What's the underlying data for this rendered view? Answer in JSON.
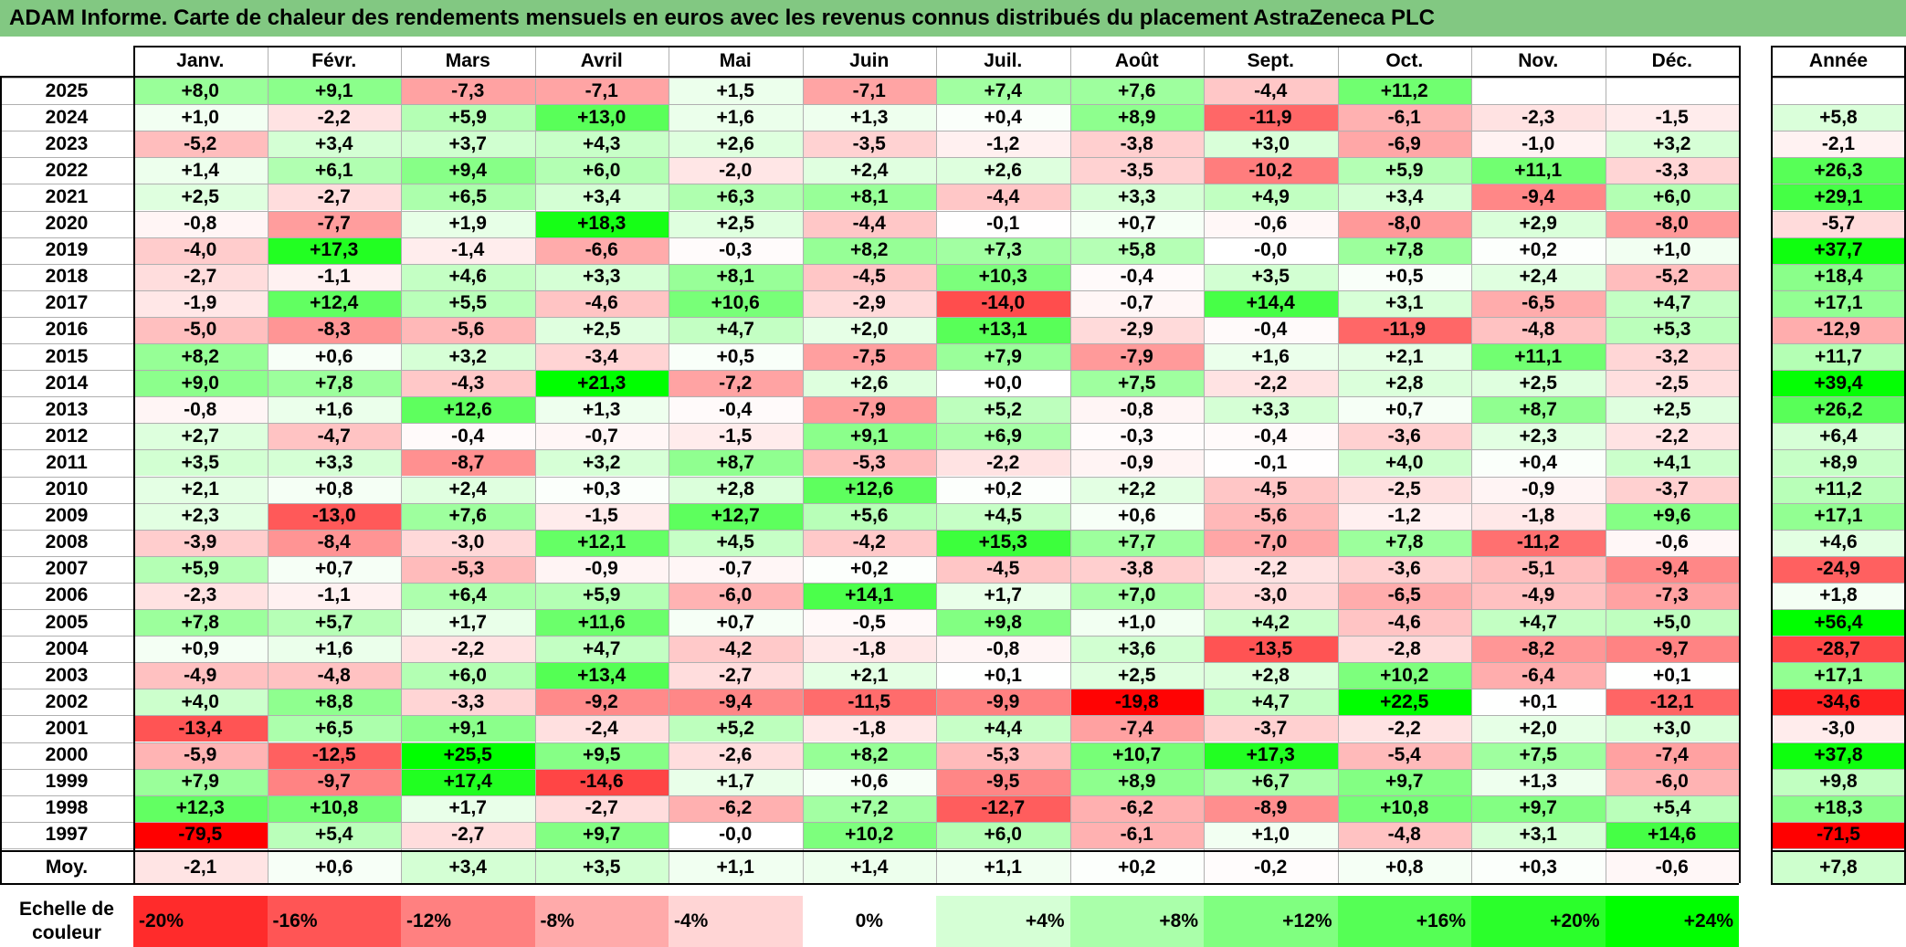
{
  "title": "ADAM Informe. Carte de chaleur des rendements mensuels en euros avec les revenus connus distribués du placement AstraZeneca PLC",
  "chart_data": {
    "type": "heatmap",
    "months": [
      "Janv.",
      "Févr.",
      "Mars",
      "Avril",
      "Mai",
      "Juin",
      "Juil.",
      "Août",
      "Sept.",
      "Oct.",
      "Nov.",
      "Déc."
    ],
    "year_header": "Année",
    "rows": [
      {
        "year": "2025",
        "values": [
          "+8,0",
          "+9,1",
          "-7,3",
          "-7,1",
          "+1,5",
          "-7,1",
          "+7,4",
          "+7,6",
          "-4,4",
          "+11,2",
          "",
          ""
        ],
        "annual": ""
      },
      {
        "year": "2024",
        "values": [
          "+1,0",
          "-2,2",
          "+5,9",
          "+13,0",
          "+1,6",
          "+1,3",
          "+0,4",
          "+8,9",
          "-11,9",
          "-6,1",
          "-2,3",
          "-1,5"
        ],
        "annual": "+5,8"
      },
      {
        "year": "2023",
        "values": [
          "-5,2",
          "+3,4",
          "+3,7",
          "+4,3",
          "+2,6",
          "-3,5",
          "-1,2",
          "-3,8",
          "+3,0",
          "-6,9",
          "-1,0",
          "+3,2"
        ],
        "annual": "-2,1"
      },
      {
        "year": "2022",
        "values": [
          "+1,4",
          "+6,1",
          "+9,4",
          "+6,0",
          "-2,0",
          "+2,4",
          "+2,6",
          "-3,5",
          "-10,2",
          "+5,9",
          "+11,1",
          "-3,3"
        ],
        "annual": "+26,3"
      },
      {
        "year": "2021",
        "values": [
          "+2,5",
          "-2,7",
          "+6,5",
          "+3,4",
          "+6,3",
          "+8,1",
          "-4,4",
          "+3,3",
          "+4,9",
          "+3,4",
          "-9,4",
          "+6,0"
        ],
        "annual": "+29,1"
      },
      {
        "year": "2020",
        "values": [
          "-0,8",
          "-7,7",
          "+1,9",
          "+18,3",
          "+2,5",
          "-4,4",
          "-0,1",
          "+0,7",
          "-0,6",
          "-8,0",
          "+2,9",
          "-8,0"
        ],
        "annual": "-5,7"
      },
      {
        "year": "2019",
        "values": [
          "-4,0",
          "+17,3",
          "-1,4",
          "-6,6",
          "-0,3",
          "+8,2",
          "+7,3",
          "+5,8",
          "-0,0",
          "+7,8",
          "+0,2",
          "+1,0"
        ],
        "annual": "+37,7"
      },
      {
        "year": "2018",
        "values": [
          "-2,7",
          "-1,1",
          "+4,6",
          "+3,3",
          "+8,1",
          "-4,5",
          "+10,3",
          "-0,4",
          "+3,5",
          "+0,5",
          "+2,4",
          "-5,2"
        ],
        "annual": "+18,4"
      },
      {
        "year": "2017",
        "values": [
          "-1,9",
          "+12,4",
          "+5,5",
          "-4,6",
          "+10,6",
          "-2,9",
          "-14,0",
          "-0,7",
          "+14,4",
          "+3,1",
          "-6,5",
          "+4,7"
        ],
        "annual": "+17,1"
      },
      {
        "year": "2016",
        "values": [
          "-5,0",
          "-8,3",
          "-5,6",
          "+2,5",
          "+4,7",
          "+2,0",
          "+13,1",
          "-2,9",
          "-0,4",
          "-11,9",
          "-4,8",
          "+5,3"
        ],
        "annual": "-12,9"
      },
      {
        "year": "2015",
        "values": [
          "+8,2",
          "+0,6",
          "+3,2",
          "-3,4",
          "+0,5",
          "-7,5",
          "+7,9",
          "-7,9",
          "+1,6",
          "+2,1",
          "+11,1",
          "-3,2"
        ],
        "annual": "+11,7"
      },
      {
        "year": "2014",
        "values": [
          "+9,0",
          "+7,8",
          "-4,3",
          "+21,3",
          "-7,2",
          "+2,6",
          "+0,0",
          "+7,5",
          "-2,2",
          "+2,8",
          "+2,5",
          "-2,5"
        ],
        "annual": "+39,4"
      },
      {
        "year": "2013",
        "values": [
          "-0,8",
          "+1,6",
          "+12,6",
          "+1,3",
          "-0,4",
          "-7,9",
          "+5,2",
          "-0,8",
          "+3,3",
          "+0,7",
          "+8,7",
          "+2,5"
        ],
        "annual": "+26,2"
      },
      {
        "year": "2012",
        "values": [
          "+2,7",
          "-4,7",
          "-0,4",
          "-0,7",
          "-1,5",
          "+9,1",
          "+6,9",
          "-0,3",
          "-0,4",
          "-3,6",
          "+2,3",
          "-2,2"
        ],
        "annual": "+6,4"
      },
      {
        "year": "2011",
        "values": [
          "+3,5",
          "+3,3",
          "-8,7",
          "+3,2",
          "+8,7",
          "-5,3",
          "-2,2",
          "-0,9",
          "-0,1",
          "+4,0",
          "+0,4",
          "+4,1"
        ],
        "annual": "+8,9"
      },
      {
        "year": "2010",
        "values": [
          "+2,1",
          "+0,8",
          "+2,4",
          "+0,3",
          "+2,8",
          "+12,6",
          "+0,2",
          "+2,2",
          "-4,5",
          "-2,5",
          "-0,9",
          "-3,7"
        ],
        "annual": "+11,2"
      },
      {
        "year": "2009",
        "values": [
          "+2,3",
          "-13,0",
          "+7,6",
          "-1,5",
          "+12,7",
          "+5,6",
          "+4,5",
          "+0,6",
          "-5,6",
          "-1,2",
          "-1,8",
          "+9,6"
        ],
        "annual": "+17,1"
      },
      {
        "year": "2008",
        "values": [
          "-3,9",
          "-8,4",
          "-3,0",
          "+12,1",
          "+4,5",
          "-4,2",
          "+15,3",
          "+7,7",
          "-7,0",
          "+7,8",
          "-11,2",
          "-0,6"
        ],
        "annual": "+4,6"
      },
      {
        "year": "2007",
        "values": [
          "+5,9",
          "+0,7",
          "-5,3",
          "-0,9",
          "-0,7",
          "+0,2",
          "-4,5",
          "-3,8",
          "-2,2",
          "-3,6",
          "-5,1",
          "-9,4"
        ],
        "annual": "-24,9"
      },
      {
        "year": "2006",
        "values": [
          "-2,3",
          "-1,1",
          "+6,4",
          "+5,9",
          "-6,0",
          "+14,1",
          "+1,7",
          "+7,0",
          "-3,0",
          "-6,5",
          "-4,9",
          "-7,3"
        ],
        "annual": "+1,8"
      },
      {
        "year": "2005",
        "values": [
          "+7,8",
          "+5,7",
          "+1,7",
          "+11,6",
          "+0,7",
          "-0,5",
          "+9,8",
          "+1,0",
          "+4,2",
          "-4,6",
          "+4,7",
          "+5,0"
        ],
        "annual": "+56,4"
      },
      {
        "year": "2004",
        "values": [
          "+0,9",
          "+1,6",
          "-2,2",
          "+4,7",
          "-4,2",
          "-1,8",
          "-0,8",
          "+3,6",
          "-13,5",
          "-2,8",
          "-8,2",
          "-9,7"
        ],
        "annual": "-28,7"
      },
      {
        "year": "2003",
        "values": [
          "-4,9",
          "-4,8",
          "+6,0",
          "+13,4",
          "-2,7",
          "+2,1",
          "+0,1",
          "+2,5",
          "+2,8",
          "+10,2",
          "-6,4",
          "+0,1"
        ],
        "annual": "+17,1"
      },
      {
        "year": "2002",
        "values": [
          "+4,0",
          "+8,8",
          "-3,3",
          "-9,2",
          "-9,4",
          "-11,5",
          "-9,9",
          "-19,8",
          "+4,7",
          "+22,5",
          "+0,1",
          "-12,1"
        ],
        "annual": "-34,6"
      },
      {
        "year": "2001",
        "values": [
          "-13,4",
          "+6,5",
          "+9,1",
          "-2,4",
          "+5,2",
          "-1,8",
          "+4,4",
          "-7,4",
          "-3,7",
          "-2,2",
          "+2,0",
          "+3,0"
        ],
        "annual": "-3,0"
      },
      {
        "year": "2000",
        "values": [
          "-5,9",
          "-12,5",
          "+25,5",
          "+9,5",
          "-2,6",
          "+8,2",
          "-5,3",
          "+10,7",
          "+17,3",
          "-5,4",
          "+7,5",
          "-7,4"
        ],
        "annual": "+37,8"
      },
      {
        "year": "1999",
        "values": [
          "+7,9",
          "-9,7",
          "+17,4",
          "-14,6",
          "+1,7",
          "+0,6",
          "-9,5",
          "+8,9",
          "+6,7",
          "+9,7",
          "+1,3",
          "-6,0"
        ],
        "annual": "+9,8"
      },
      {
        "year": "1998",
        "values": [
          "+12,3",
          "+10,8",
          "+1,7",
          "-2,7",
          "-6,2",
          "+7,2",
          "-12,7",
          "-6,2",
          "-8,9",
          "+10,8",
          "+9,7",
          "+5,4"
        ],
        "annual": "+18,3"
      },
      {
        "year": "1997",
        "values": [
          "-79,5",
          "+5,4",
          "-2,7",
          "+9,7",
          "-0,0",
          "+10,2",
          "+6,0",
          "-6,1",
          "+1,0",
          "-4,8",
          "+3,1",
          "+14,6"
        ],
        "annual": "-71,5"
      }
    ],
    "average_label": "Moy.",
    "averages": [
      "-2,1",
      "+0,6",
      "+3,4",
      "+3,5",
      "+1,1",
      "+1,4",
      "+1,1",
      "+0,2",
      "-0,2",
      "+0,8",
      "+0,3",
      "-0,6"
    ],
    "average_annual": "+7,8",
    "scale_label": "Echelle de couleur",
    "scale": [
      {
        "label": "-20%",
        "value": -20
      },
      {
        "label": "-16%",
        "value": -16
      },
      {
        "label": "-12%",
        "value": -12
      },
      {
        "label": "-8%",
        "value": -8
      },
      {
        "label": "-4%",
        "value": -4
      },
      {
        "label": "0%",
        "value": 0
      },
      {
        "label": "+4%",
        "value": 4
      },
      {
        "label": "+8%",
        "value": 8
      },
      {
        "label": "+12%",
        "value": 12
      },
      {
        "label": "+16%",
        "value": 16
      },
      {
        "label": "+20%",
        "value": 20
      },
      {
        "label": "+24%",
        "value": 24
      }
    ],
    "colors": {
      "negative_max": "#ff0000",
      "neutral": "#ffffff",
      "positive_max": "#00ff00",
      "title_bg": "#82c882"
    }
  }
}
